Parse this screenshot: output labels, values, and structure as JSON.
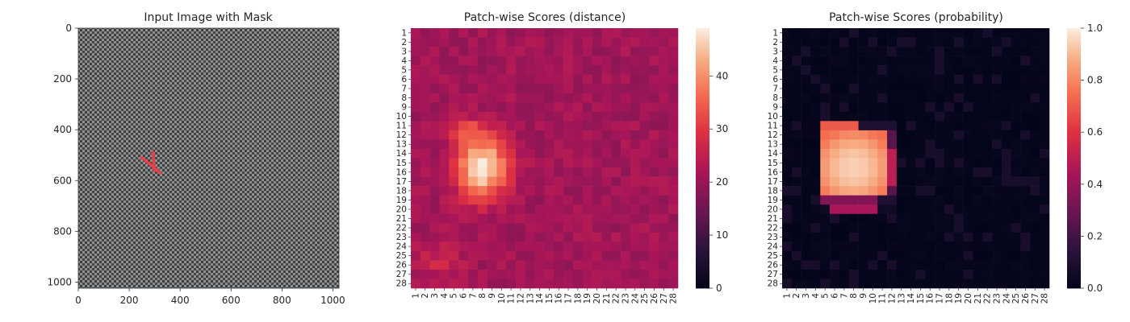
{
  "chart_data": [
    {
      "type": "image",
      "title": "Input Image with Mask",
      "x_ticks": [
        "0",
        "200",
        "400",
        "600",
        "800",
        "1000"
      ],
      "y_ticks": [
        "0",
        "200",
        "400",
        "600",
        "800",
        "1000"
      ],
      "xlim": [
        0,
        1024
      ],
      "ylim": [
        0,
        1024
      ],
      "texture": "grey woven fabric",
      "mask_color": "#e8404a",
      "mask_marks": [
        {
          "x1": 250,
          "y1": 510,
          "x2": 322,
          "y2": 570
        },
        {
          "x1": 292,
          "y1": 488,
          "x2": 300,
          "y2": 560
        }
      ]
    },
    {
      "type": "heatmap",
      "title": "Patch-wise Scores (distance)",
      "rows": 28,
      "cols": 28,
      "tick_labels": [
        "1",
        "2",
        "3",
        "4",
        "5",
        "6",
        "7",
        "8",
        "9",
        "10",
        "11",
        "12",
        "13",
        "14",
        "15",
        "16",
        "17",
        "18",
        "19",
        "20",
        "21",
        "22",
        "23",
        "24",
        "25",
        "26",
        "27",
        "28"
      ],
      "vmin": 0,
      "vmax": 49,
      "colorbar_ticks": [
        0,
        10,
        20,
        30,
        40
      ],
      "colormap": "rocket",
      "background_value": 21,
      "blobs": [
        {
          "row": 15.5,
          "col": 8,
          "sigma_row": 2.3,
          "sigma_col": 1.9,
          "amplitude": 28
        },
        {
          "row": 11.6,
          "col": 6.5,
          "sigma_row": 0.9,
          "sigma_col": 1.4,
          "amplitude": 9
        },
        {
          "row": 25.5,
          "col": 3.5,
          "sigma_row": 1.5,
          "sigma_col": 1.8,
          "amplitude": 5
        }
      ]
    },
    {
      "type": "heatmap",
      "title": "Patch-wise Scores (probability)",
      "rows": 28,
      "cols": 28,
      "tick_labels": [
        "1",
        "2",
        "3",
        "4",
        "5",
        "6",
        "7",
        "8",
        "9",
        "10",
        "11",
        "12",
        "13",
        "14",
        "15",
        "16",
        "17",
        "18",
        "19",
        "20",
        "21",
        "22",
        "23",
        "24",
        "25",
        "26",
        "27",
        "28"
      ],
      "vmin": 0,
      "vmax": 1,
      "colorbar_ticks": [
        "0.0",
        "0.2",
        "0.4",
        "0.6",
        "0.8",
        "1.0"
      ],
      "colormap": "rocket",
      "background_value": 0.02,
      "region_rows": [
        11,
        20
      ],
      "region_cols": [
        5,
        12
      ],
      "peak_value": 0.95,
      "row_11_values": [
        0.7,
        0.7,
        0.7,
        0.7
      ]
    }
  ]
}
